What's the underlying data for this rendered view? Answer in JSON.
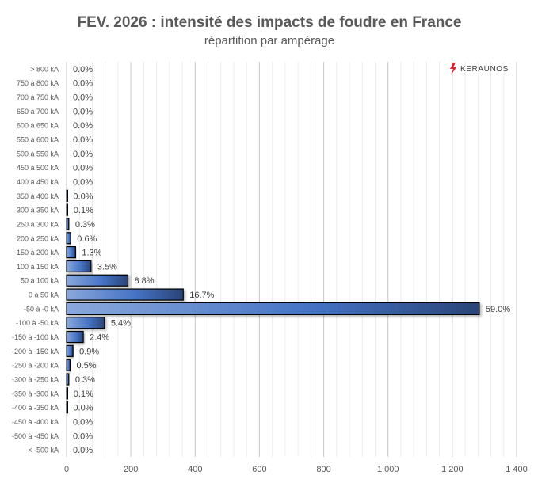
{
  "chart_data": {
    "type": "bar",
    "orientation": "horizontal",
    "title": "FEV. 2026 : intensité des impacts de foudre en France",
    "subtitle": "répartition par ampérage",
    "logo_text": "KERAUNOS",
    "categories": [
      "> 800 kA",
      "750 à 800 kA",
      "700 à 750 kA",
      "650 à 700 kA",
      "600 à 650 kA",
      "550 à 600 kA",
      "500 à 550 kA",
      "450 à 500 kA",
      "400 à 450 kA",
      "350 à 400 kA",
      "300 à 350 kA",
      "250 à 300 kA",
      "200 à 250 kA",
      "150 à 200 kA",
      "100 à 150 kA",
      "50 à 100 kA",
      "0 à 50 kA",
      "-50 à -0 kA",
      "-100 à -50 kA",
      "-150 à -100 kA",
      "-200 à -150 kA",
      "-250 à -200 kA",
      "-300 à -250 kA",
      "-350 à -300 kA",
      "-400 à -350 kA",
      "-450 à -400 kA",
      "-500 à -450 kA",
      "< -500 kA"
    ],
    "values": [
      0,
      0,
      0,
      0,
      0,
      0,
      0,
      0,
      0,
      1,
      2,
      7,
      13,
      28,
      76,
      191,
      363,
      1284,
      118,
      52,
      20,
      11,
      7,
      2,
      1,
      0,
      0,
      0
    ],
    "data_labels": [
      "0.0%",
      "0.0%",
      "0.0%",
      "0.0%",
      "0.0%",
      "0.0%",
      "0.0%",
      "0.0%",
      "0.0%",
      "0.0%",
      "0.1%",
      "0.3%",
      "0.6%",
      "1.3%",
      "3.5%",
      "8.8%",
      "16.7%",
      "59.0%",
      "5.4%",
      "2.4%",
      "0.9%",
      "0.5%",
      "0.3%",
      "0.1%",
      "0.0%",
      "0.0%",
      "0.0%",
      "0.0%"
    ],
    "xlim": [
      0,
      1400
    ],
    "x_ticks": [
      0,
      200,
      400,
      600,
      800,
      1000,
      1200,
      1400
    ],
    "x_tick_labels": [
      "0",
      "200",
      "400",
      "600",
      "800",
      "1 000",
      "1 200",
      "1 400"
    ],
    "grid": true,
    "legend": "none",
    "colors": {
      "bar_light": "#8aa8dc",
      "bar_mid": "#4472c4",
      "bar_dark": "#2a4478",
      "title": "#595959",
      "logo_red": "#e0202a"
    }
  }
}
